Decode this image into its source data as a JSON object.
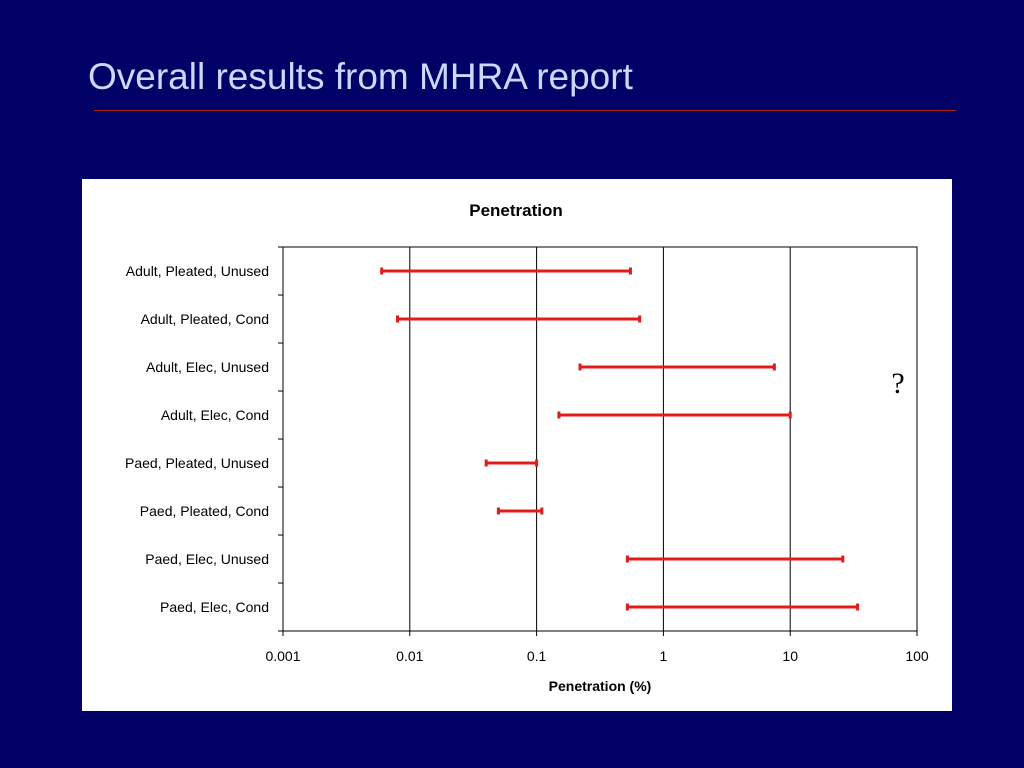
{
  "slide": {
    "title": "Overall results from MHRA report"
  },
  "chart_data": {
    "type": "range",
    "title": "Penetration",
    "xlabel": "Penetration (%)",
    "ylabel": "",
    "x_scale": "log",
    "xlim": [
      0.001,
      100
    ],
    "x_ticks": [
      0.001,
      0.01,
      0.1,
      1,
      10,
      100
    ],
    "x_tick_labels": [
      "0.001",
      "0.01",
      "0.1",
      "1",
      "10",
      "100"
    ],
    "grid": "vertical major gridlines at 0.01, 0.1, 1, 10",
    "categories": [
      "Adult, Pleated, Unused",
      "Adult, Pleated, Cond",
      "Adult, Elec, Unused",
      "Adult, Elec, Cond",
      "Paed, Pleated, Unused",
      "Paed, Pleated, Cond",
      "Paed, Elec, Unused",
      "Paed, Elec, Cond"
    ],
    "series": [
      {
        "color": "#e31b1b",
        "ranges": [
          [
            0.006,
            0.55
          ],
          [
            0.008,
            0.65
          ],
          [
            0.22,
            7.5
          ],
          [
            0.15,
            10
          ],
          [
            0.04,
            0.1
          ],
          [
            0.05,
            0.11
          ],
          [
            0.52,
            26
          ],
          [
            0.52,
            34
          ]
        ]
      }
    ],
    "annotations": [
      "?"
    ]
  }
}
